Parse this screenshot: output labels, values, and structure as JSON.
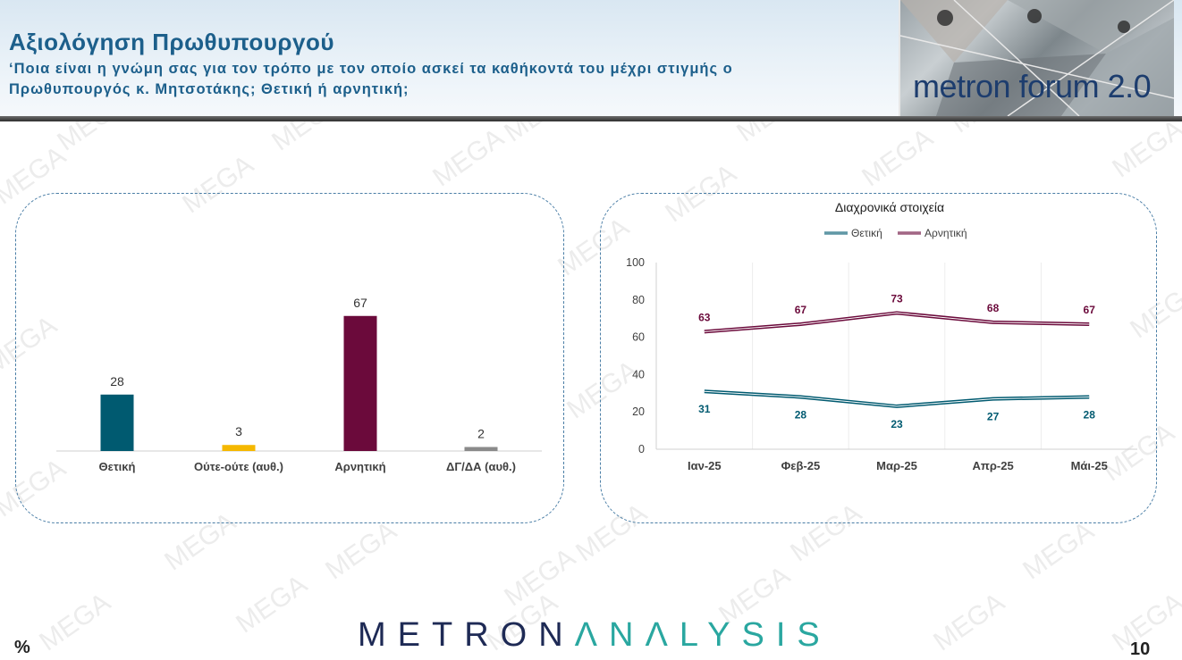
{
  "header": {
    "title": "Αξιολόγηση Πρωθυπουργού",
    "subtitle": "‘Ποια είναι η γνώμη σας για τον τρόπο με τον οποίο ασκεί τα καθήκοντά του μέχρι στιγμής ο Πρωθυπουργός κ. Μητσοτάκης; Θετική ή αρνητική;",
    "logo_text": "metron forum 2.0"
  },
  "watermark": "MEGA",
  "footer": {
    "percent": "%",
    "brand_part1": "METRON",
    "brand_part2": "ΛNΛLYSIS",
    "page": "10"
  },
  "colors": {
    "title": "#1c5f8b",
    "positive": "#005a70",
    "neutral": "#f5b800",
    "negative": "#6b0a3b",
    "dkna": "#8a8a8a"
  },
  "chart_data": [
    {
      "type": "bar",
      "title": "",
      "categories": [
        "Θετική",
        "Ούτε-ούτε (αυθ.)",
        "Αρνητική",
        "ΔΓ/ΔΑ (αυθ.)"
      ],
      "values": [
        28,
        3,
        67,
        2
      ],
      "colors": [
        "#005a70",
        "#f5b800",
        "#6b0a3b",
        "#8a8a8a"
      ],
      "ylim": [
        0,
        70
      ],
      "grid": false,
      "legend": "none"
    },
    {
      "type": "line",
      "title": "Διαχρονικά στοιχεία",
      "categories": [
        "Ιαν-25",
        "Φεβ-25",
        "Μαρ-25",
        "Απρ-25",
        "Μάι-25"
      ],
      "series": [
        {
          "name": "Θετική",
          "values": [
            31,
            28,
            23,
            27,
            28
          ],
          "color": "#005a70"
        },
        {
          "name": "Αρνητική",
          "values": [
            63,
            67,
            73,
            68,
            67
          ],
          "color": "#6b0a3b"
        }
      ],
      "yticks": [
        0,
        20,
        40,
        60,
        80,
        100
      ],
      "ylim": [
        0,
        100
      ],
      "grid": true,
      "legend": "top-center"
    }
  ]
}
